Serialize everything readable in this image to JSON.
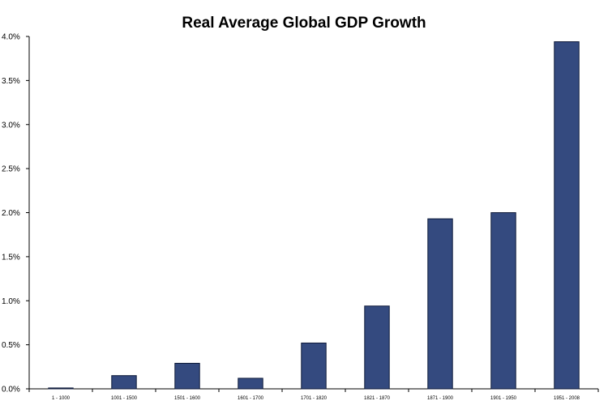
{
  "chart_data": {
    "type": "bar",
    "title": "Real Average Global GDP Growth",
    "xlabel": "",
    "ylabel": "",
    "categories": [
      "1 - 1000",
      "1001 - 1500",
      "1501 - 1600",
      "1601 - 1700",
      "1701 - 1820",
      "1821 - 1870",
      "1871 - 1900",
      "1901 - 1950",
      "1951 - 2008"
    ],
    "values": [
      0.01,
      0.15,
      0.29,
      0.12,
      0.52,
      0.94,
      1.93,
      2.0,
      3.94
    ],
    "value_format": "percent",
    "ylim": [
      0,
      4.0
    ],
    "yticks": [
      0.0,
      0.5,
      1.0,
      1.5,
      2.0,
      2.5,
      3.0,
      3.5,
      4.0
    ],
    "ytick_labels": [
      "0.0%",
      "0.5%",
      "1.0%",
      "1.5%",
      "2.0%",
      "2.5%",
      "3.0%",
      "3.5%",
      "4.0%"
    ],
    "grid": false,
    "legend": "none",
    "colors": {
      "bar_fill": "#344A7F",
      "bar_stroke": "#0E1A3A",
      "axis": "#000000"
    }
  }
}
